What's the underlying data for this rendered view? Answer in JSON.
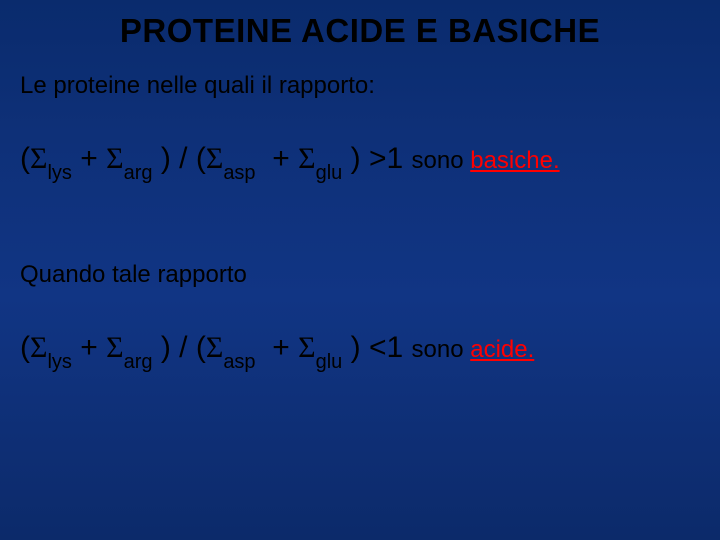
{
  "title": "PROTEINE ACIDE E BASICHE",
  "intro": "Le proteine nelle quali il rapporto:",
  "mid": "Quando tale rapporto",
  "sigma": "Σ",
  "labels": {
    "lys": "lys",
    "arg": "arg",
    "asp": "asp",
    "glu": "glu"
  },
  "ops": {
    "open": "(",
    "close": ")",
    "plus": " + ",
    "div_open": " / (",
    "gt1": " >1 ",
    "lt1": " <1 "
  },
  "trail": {
    "sono": " sono ",
    "basiche": "basiche.",
    "acide": "acide."
  },
  "colors": {
    "background_top": "#0a2b6d",
    "background_bottom": "#0c2a6a",
    "text": "#000000",
    "highlight": "#ff0000"
  },
  "typography": {
    "title_fontsize": 33,
    "body_fontsize": 24,
    "formula_fontsize": 30,
    "sub_fontsize": 20,
    "font_family": "Comic Sans MS"
  }
}
